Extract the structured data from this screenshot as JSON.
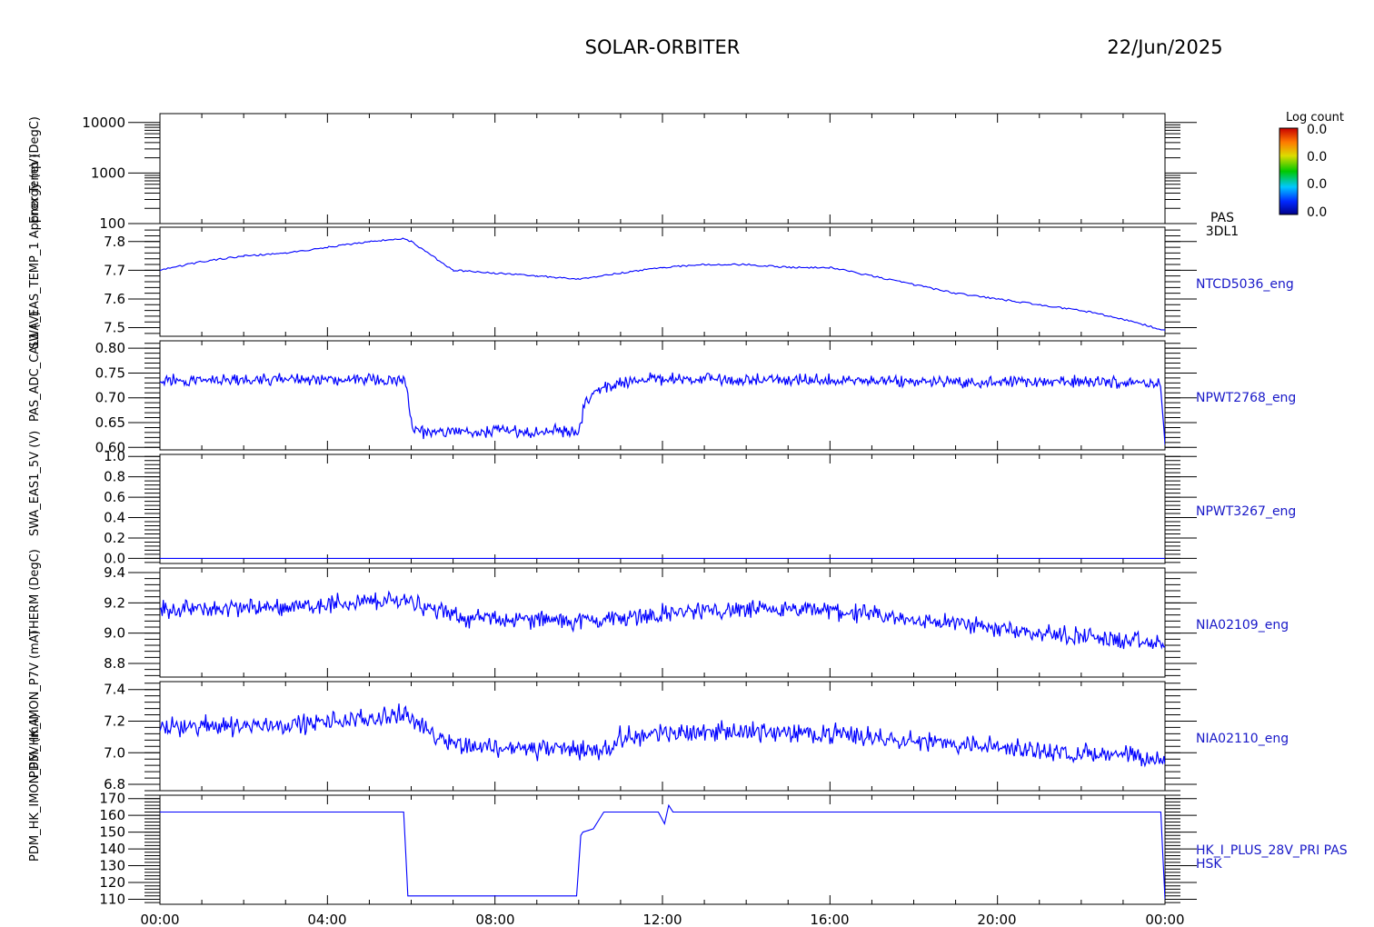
{
  "header": {
    "mission": "SOLAR-ORBITER",
    "date": "22/Jun/2025"
  },
  "colorbar": {
    "title": "Log count",
    "ticks": [
      "0.0",
      "0.0",
      "0.0",
      "0.0"
    ]
  },
  "y_axis_overlay": [
    "Energy (eV)",
    "SWA_EAS_TEMP_1 Approx Temp (DegC)",
    "PAS_ADC_CAL1 (V)",
    "SWA_EAS1_5V (V)",
    "PDM_HK_IMON_P5V (mA)",
    "PDM_HK_IMON_P7V (mA)",
    "THERM (DegC)"
  ],
  "x_ticks": [
    "00:00",
    "04:00",
    "08:00",
    "12:00",
    "16:00",
    "20:00",
    "00:00"
  ],
  "chart_data": [
    {
      "type": "spectrogram",
      "label_lines": [
        "PAS",
        "3DL1"
      ],
      "ylog": true,
      "ylim": [
        100,
        15000
      ],
      "yticks": [
        100,
        1000,
        10000
      ],
      "ytick_labels": [
        "100",
        "1000",
        "10000"
      ],
      "values": []
    },
    {
      "type": "line",
      "label": "NTCD5036_eng",
      "ylim": [
        7.47,
        7.85
      ],
      "yticks": [
        7.5,
        7.6,
        7.7,
        7.8
      ],
      "ytick_labels": [
        "7.5",
        "7.6",
        "7.7",
        "7.8"
      ],
      "x": [
        0,
        1,
        2,
        3,
        4,
        5,
        5.8,
        6.0,
        6.5,
        7,
        8,
        9,
        10,
        11,
        12,
        13,
        14,
        15,
        16,
        17,
        18,
        19,
        20,
        21,
        22,
        23,
        24
      ],
      "values": [
        7.7,
        7.73,
        7.75,
        7.76,
        7.78,
        7.8,
        7.81,
        7.8,
        7.75,
        7.7,
        7.69,
        7.68,
        7.67,
        7.69,
        7.71,
        7.72,
        7.72,
        7.71,
        7.71,
        7.68,
        7.65,
        7.62,
        7.6,
        7.58,
        7.56,
        7.53,
        7.49
      ]
    },
    {
      "type": "line",
      "label": "NPWT2768_eng",
      "ylim": [
        0.595,
        0.815
      ],
      "yticks": [
        0.6,
        0.65,
        0.7,
        0.75,
        0.8
      ],
      "ytick_labels": [
        "0.60",
        "0.65",
        "0.70",
        "0.75",
        "0.80"
      ],
      "x": [
        0,
        5.85,
        6.05,
        10.0,
        10.15,
        10.6,
        11.5,
        23.9,
        24
      ],
      "values": [
        0.735,
        0.738,
        0.632,
        0.632,
        0.69,
        0.72,
        0.738,
        0.73,
        0.61
      ],
      "noise": 0.012
    },
    {
      "type": "line",
      "label": "NPWT3267_eng",
      "ylim": [
        -0.05,
        1.02
      ],
      "yticks": [
        0.0,
        0.2,
        0.4,
        0.6,
        0.8,
        1.0
      ],
      "ytick_labels": [
        "0.0",
        "0.2",
        "0.4",
        "0.6",
        "0.8",
        "1.0"
      ],
      "x": [
        0,
        24
      ],
      "values": [
        0.0,
        0.0
      ]
    },
    {
      "type": "line",
      "label": "NIA02109_eng",
      "ylim": [
        8.71,
        9.43
      ],
      "yticks": [
        8.8,
        9.0,
        9.2,
        9.4
      ],
      "ytick_labels": [
        "8.8",
        "9.0",
        "9.2",
        "9.4"
      ],
      "x": [
        0,
        3.5,
        5.9,
        6.6,
        7.3,
        10.0,
        11.0,
        13.0,
        16.0,
        17.5,
        19.5,
        22.0,
        24
      ],
      "values": [
        9.15,
        9.18,
        9.22,
        9.15,
        9.1,
        9.08,
        9.1,
        9.15,
        9.15,
        9.1,
        9.05,
        8.98,
        8.92
      ],
      "noise": 0.06
    },
    {
      "type": "line",
      "label": "NIA02110_eng",
      "ylim": [
        6.76,
        7.45
      ],
      "yticks": [
        6.8,
        7.0,
        7.2,
        7.4
      ],
      "ytick_labels": [
        "6.8",
        "7.0",
        "7.2",
        "7.4"
      ],
      "x": [
        0,
        3.5,
        5.9,
        6.5,
        7.2,
        9.0,
        10.7,
        11.0,
        13.0,
        16.0,
        18.0,
        20.0,
        23.0,
        24
      ],
      "values": [
        7.16,
        7.18,
        7.24,
        7.12,
        7.05,
        7.02,
        7.02,
        7.1,
        7.14,
        7.12,
        7.08,
        7.03,
        6.98,
        6.94
      ],
      "noise": 0.06
    },
    {
      "type": "line",
      "label_lines": [
        "HK_I_PLUS_28V_PRI PAS",
        "HSK"
      ],
      "ylim": [
        107,
        172
      ],
      "yticks": [
        110,
        120,
        130,
        140,
        150,
        160,
        170
      ],
      "ytick_labels": [
        "110",
        "120",
        "130",
        "140",
        "150",
        "160",
        "170"
      ],
      "x": [
        0,
        5.82,
        5.92,
        9.95,
        10.05,
        10.1,
        10.35,
        10.6,
        11.9,
        12.05,
        12.15,
        12.25,
        23.9,
        23.96,
        24
      ],
      "values": [
        162,
        162,
        112,
        112,
        148,
        150,
        152,
        162,
        162,
        155,
        166,
        162,
        162,
        130,
        110
      ]
    }
  ]
}
